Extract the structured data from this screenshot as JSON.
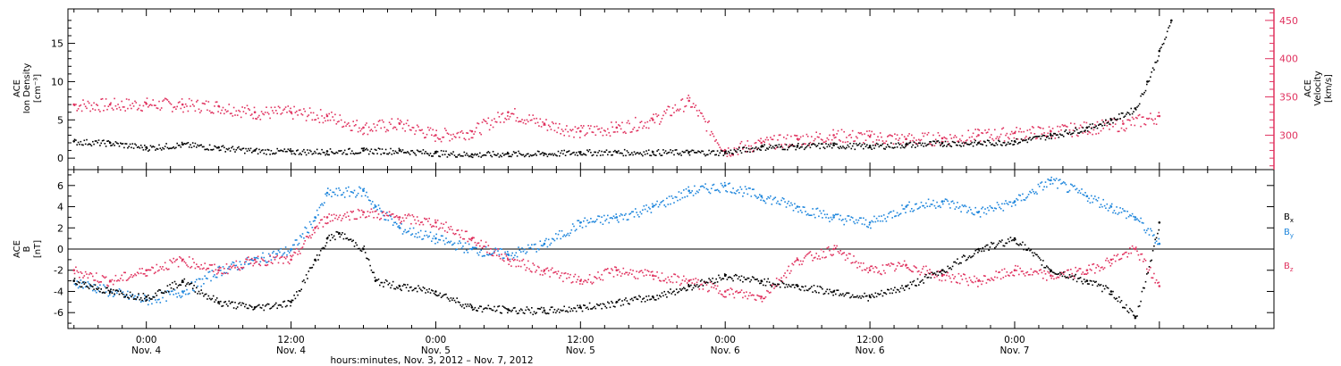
{
  "colors": {
    "black": "#000000",
    "pink": "#e0325f",
    "blue": "#1e86dc"
  },
  "chart_data": [
    {
      "type": "scatter",
      "left_axis": {
        "label_lines": [
          "ACE",
          "Ion Density",
          "[cm⁻³]"
        ],
        "ylim": [
          -1.5,
          19.5
        ],
        "ticks": [
          "0",
          "5",
          "10",
          "15"
        ],
        "tick_values": [
          0,
          5,
          10,
          15
        ]
      },
      "right_axis": {
        "label_lines": [
          "ACE",
          "Velocity",
          "[km/s]"
        ],
        "ylim": [
          255,
          465
        ],
        "ticks": [
          "300",
          "350",
          "400",
          "450"
        ],
        "tick_values": [
          300,
          350,
          400,
          450
        ],
        "color": "#e0325f"
      },
      "xlim_hours": [
        -6.5,
        93.5
      ],
      "series": [
        {
          "axis": "left",
          "color": "#000000",
          "points": [
            [
              -6,
              2.2
            ],
            [
              -3,
              2.0
            ],
            [
              0,
              1.4
            ],
            [
              3,
              1.8
            ],
            [
              6,
              1.4
            ],
            [
              9,
              1.0
            ],
            [
              12,
              0.9
            ],
            [
              15,
              0.9
            ],
            [
              18,
              1.0
            ],
            [
              21,
              1.0
            ],
            [
              24,
              0.7
            ],
            [
              27,
              0.5
            ],
            [
              30,
              0.6
            ],
            [
              33,
              0.6
            ],
            [
              36,
              0.8
            ],
            [
              39,
              0.8
            ],
            [
              42,
              0.8
            ],
            [
              45,
              0.8
            ],
            [
              48,
              0.8
            ],
            [
              51,
              1.5
            ],
            [
              54,
              1.6
            ],
            [
              57,
              1.7
            ],
            [
              60,
              1.6
            ],
            [
              63,
              1.8
            ],
            [
              66,
              2.0
            ],
            [
              69,
              2.0
            ],
            [
              72,
              2.2
            ],
            [
              75,
              3.0
            ],
            [
              78,
              4.0
            ],
            [
              80,
              5.0
            ],
            [
              82,
              6.5
            ],
            [
              83,
              10
            ],
            [
              84,
              14
            ],
            [
              85,
              18
            ]
          ]
        },
        {
          "axis": "right",
          "color": "#e0325f",
          "points": [
            [
              -6,
              340
            ],
            [
              -3,
              340
            ],
            [
              0,
              341
            ],
            [
              3,
              340
            ],
            [
              6,
              338
            ],
            [
              9,
              330
            ],
            [
              12,
              330
            ],
            [
              15,
              325
            ],
            [
              18,
              310
            ],
            [
              21,
              315
            ],
            [
              24,
              300
            ],
            [
              27,
              305
            ],
            [
              30,
              330
            ],
            [
              33,
              315
            ],
            [
              36,
              305
            ],
            [
              39,
              310
            ],
            [
              42,
              320
            ],
            [
              45,
              345
            ],
            [
              48,
              280
            ],
            [
              51,
              290
            ],
            [
              54,
              295
            ],
            [
              57,
              300
            ],
            [
              60,
              298
            ],
            [
              63,
              295
            ],
            [
              66,
              296
            ],
            [
              69,
              300
            ],
            [
              72,
              303
            ],
            [
              75,
              305
            ],
            [
              78,
              310
            ],
            [
              81,
              315
            ],
            [
              84,
              325
            ]
          ]
        }
      ]
    },
    {
      "type": "scatter",
      "left_axis": {
        "label_lines": [
          "ACE",
          "B",
          "[nT]"
        ],
        "ylim": [
          -7.5,
          7.5
        ],
        "ticks": [
          "-6",
          "-4",
          "-2",
          "0",
          "2",
          "4",
          "6"
        ],
        "tick_values": [
          -6,
          -4,
          -2,
          0,
          2,
          4,
          6
        ]
      },
      "xlim_hours": [
        -6.5,
        93.5
      ],
      "legend": [
        {
          "name": "B",
          "sub": "x",
          "color": "#000000"
        },
        {
          "name": "B",
          "sub": "y",
          "color": "#1e86dc"
        },
        {
          "name": "B",
          "sub": "z",
          "color": "#e0325f"
        }
      ],
      "series": [
        {
          "name": "Bx",
          "color": "#000000",
          "points": [
            [
              -6,
              -3
            ],
            [
              -3,
              -4
            ],
            [
              0,
              -4.5
            ],
            [
              3,
              -3
            ],
            [
              6,
              -5
            ],
            [
              9,
              -5.5
            ],
            [
              12,
              -5
            ],
            [
              14,
              -1
            ],
            [
              15,
              1
            ],
            [
              16,
              1.5
            ],
            [
              18,
              0
            ],
            [
              19,
              -3
            ],
            [
              21,
              -3.5
            ],
            [
              24,
              -4
            ],
            [
              27,
              -5.5
            ],
            [
              30,
              -5.7
            ],
            [
              33,
              -5.8
            ],
            [
              36,
              -5.5
            ],
            [
              39,
              -5
            ],
            [
              42,
              -4.5
            ],
            [
              45,
              -3.5
            ],
            [
              48,
              -2.5
            ],
            [
              51,
              -3
            ],
            [
              54,
              -3.5
            ],
            [
              57,
              -4
            ],
            [
              60,
              -4.5
            ],
            [
              63,
              -3.5
            ],
            [
              66,
              -2
            ],
            [
              69,
              0
            ],
            [
              72,
              1
            ],
            [
              75,
              -2
            ],
            [
              78,
              -3
            ],
            [
              80,
              -4
            ],
            [
              82,
              -6.5
            ],
            [
              84,
              2.5
            ]
          ]
        },
        {
          "name": "By",
          "color": "#1e86dc",
          "points": [
            [
              -6,
              -3
            ],
            [
              -3,
              -4
            ],
            [
              0,
              -4.8
            ],
            [
              3,
              -4
            ],
            [
              6,
              -2
            ],
            [
              9,
              -1
            ],
            [
              12,
              0
            ],
            [
              14,
              3
            ],
            [
              15,
              5.3
            ],
            [
              18,
              5.5
            ],
            [
              19,
              4
            ],
            [
              21,
              2
            ],
            [
              24,
              1
            ],
            [
              27,
              0
            ],
            [
              30,
              -0.5
            ],
            [
              33,
              0.5
            ],
            [
              36,
              2.5
            ],
            [
              39,
              3
            ],
            [
              42,
              4
            ],
            [
              45,
              5.5
            ],
            [
              48,
              6
            ],
            [
              51,
              5
            ],
            [
              54,
              4
            ],
            [
              57,
              3
            ],
            [
              60,
              2.5
            ],
            [
              63,
              4
            ],
            [
              66,
              4.5
            ],
            [
              69,
              3.5
            ],
            [
              72,
              4.5
            ],
            [
              75,
              6.5
            ],
            [
              78,
              5
            ],
            [
              80,
              4
            ],
            [
              82,
              3
            ],
            [
              84,
              0.5
            ]
          ]
        },
        {
          "name": "Bz",
          "color": "#e0325f",
          "points": [
            [
              -6,
              -2
            ],
            [
              -3,
              -3
            ],
            [
              0,
              -2
            ],
            [
              3,
              -1
            ],
            [
              6,
              -2
            ],
            [
              9,
              -1
            ],
            [
              12,
              -1
            ],
            [
              14,
              2
            ],
            [
              15,
              3
            ],
            [
              18,
              3.5
            ],
            [
              21,
              3
            ],
            [
              24,
              2.5
            ],
            [
              27,
              1
            ],
            [
              30,
              -1
            ],
            [
              33,
              -2
            ],
            [
              36,
              -3
            ],
            [
              39,
              -2
            ],
            [
              42,
              -2.5
            ],
            [
              45,
              -3
            ],
            [
              48,
              -4
            ],
            [
              51,
              -4.5
            ],
            [
              54,
              -1
            ],
            [
              57,
              0
            ],
            [
              60,
              -2
            ],
            [
              63,
              -1.5
            ],
            [
              66,
              -2.5
            ],
            [
              69,
              -3
            ],
            [
              72,
              -2
            ],
            [
              75,
              -2.5
            ],
            [
              78,
              -2
            ],
            [
              80,
              -1
            ],
            [
              82,
              0
            ],
            [
              84,
              -3.5
            ]
          ]
        }
      ]
    }
  ],
  "x_axis": {
    "ticks": [
      {
        "hour": 0,
        "time": "0:00",
        "day": "Nov. 4"
      },
      {
        "hour": 12,
        "time": "12:00",
        "day": "Nov. 4"
      },
      {
        "hour": 24,
        "time": "0:00",
        "day": "Nov. 5"
      },
      {
        "hour": 36,
        "time": "12:00",
        "day": "Nov. 5"
      },
      {
        "hour": 48,
        "time": "0:00",
        "day": "Nov. 6"
      },
      {
        "hour": 60,
        "time": "12:00",
        "day": "Nov. 6"
      },
      {
        "hour": 72,
        "time": "0:00",
        "day": "Nov. 7"
      }
    ],
    "title": "hours:minutes, Nov.  3, 2012 – Nov.  7, 2012"
  }
}
